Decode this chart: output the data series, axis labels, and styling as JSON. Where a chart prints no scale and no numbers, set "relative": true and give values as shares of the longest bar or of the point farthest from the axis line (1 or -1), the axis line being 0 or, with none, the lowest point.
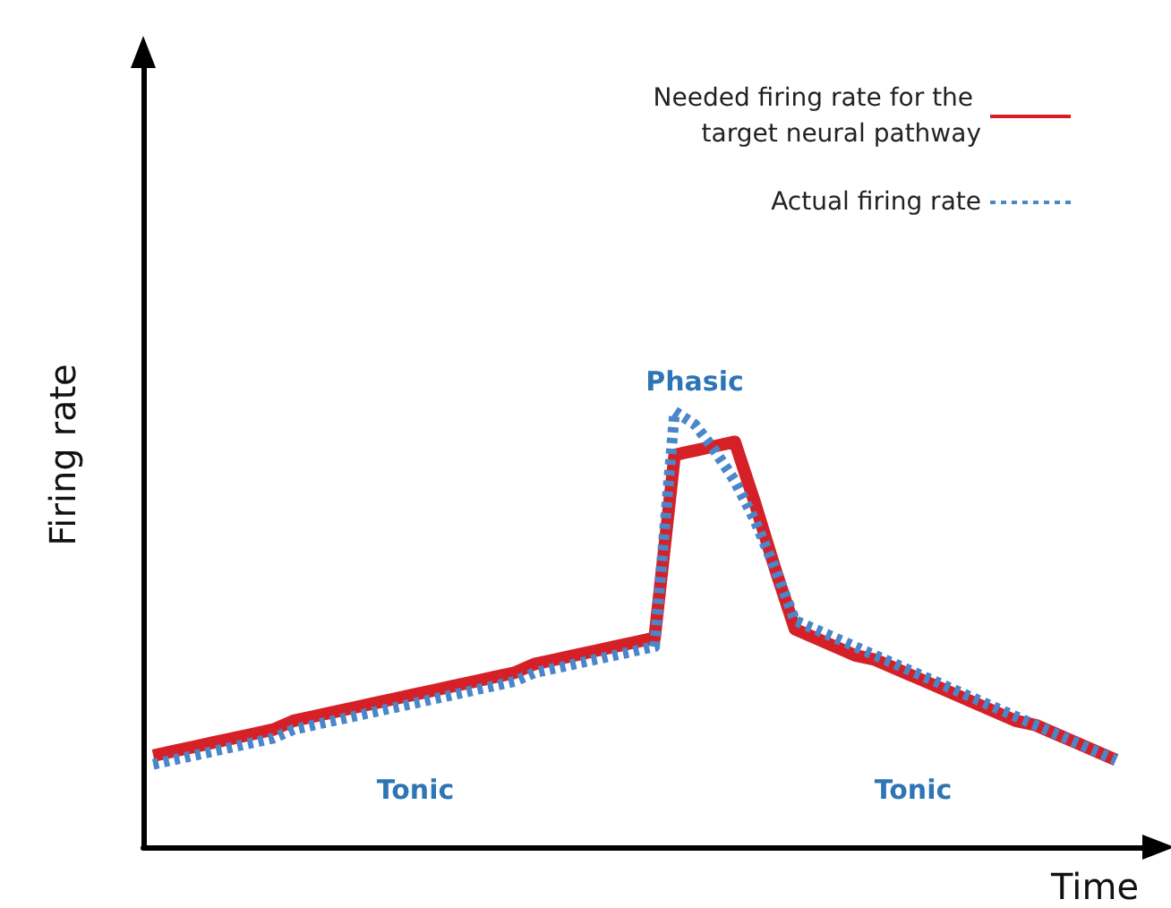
{
  "chart_data": {
    "type": "line",
    "relative": true,
    "xlabel": "Time",
    "ylabel": "Firing rate",
    "legend": "top right",
    "grid": false,
    "marker": "none",
    "categories": [
      null,
      null,
      null,
      null,
      null,
      null,
      null,
      null,
      null,
      null,
      null,
      null,
      null,
      null,
      null,
      null,
      null,
      null,
      null,
      null,
      null,
      null,
      null,
      null,
      null,
      null,
      null,
      null,
      null,
      null,
      null,
      null,
      null,
      null,
      null,
      null,
      null,
      null,
      null,
      null,
      null,
      null,
      null,
      null,
      null,
      null,
      null,
      null,
      null,
      null
    ],
    "series": [
      {
        "name": "Needed firing rate for the target neural pathway",
        "color": "#d62027",
        "line_style": "solid",
        "values": [
          0.21,
          0.22,
          0.23,
          0.24,
          0.25,
          0.26,
          0.27,
          0.29,
          0.3,
          0.31,
          0.32,
          0.33,
          0.34,
          0.35,
          0.36,
          0.37,
          0.38,
          0.39,
          0.4,
          0.42,
          0.43,
          0.44,
          0.45,
          0.46,
          0.47,
          0.48,
          0.9,
          0.91,
          0.92,
          0.93,
          0.79,
          0.64,
          0.5,
          0.48,
          0.46,
          0.44,
          0.43,
          0.41,
          0.39,
          0.37,
          0.35,
          0.33,
          0.31,
          0.29,
          0.28,
          0.26,
          0.24,
          0.22,
          0.2,
          null
        ]
      },
      {
        "name": "Actual firing rate",
        "color": "#4a86c8",
        "line_style": "dotted",
        "values": [
          0.19,
          0.2,
          0.21,
          0.22,
          0.23,
          0.24,
          0.25,
          0.27,
          0.28,
          0.29,
          0.3,
          0.31,
          0.32,
          0.33,
          0.34,
          0.35,
          0.36,
          0.37,
          0.38,
          0.4,
          0.41,
          0.42,
          0.43,
          0.44,
          0.45,
          0.46,
          1,
          0.97,
          0.91,
          0.84,
          0.75,
          0.64,
          0.52,
          0.5,
          0.48,
          0.46,
          0.44,
          0.42,
          0.4,
          0.38,
          0.36,
          0.34,
          0.32,
          0.3,
          0.28,
          0.26,
          0.24,
          0.22,
          0.2,
          null
        ]
      }
    ],
    "annotations": [
      "Phasic",
      "Tonic",
      "Tonic"
    ]
  }
}
